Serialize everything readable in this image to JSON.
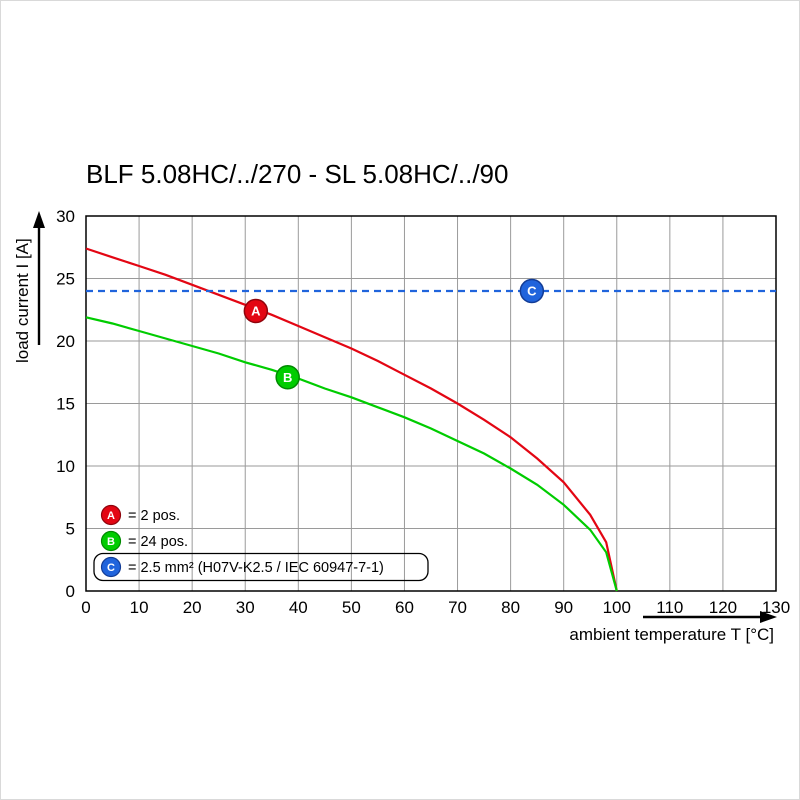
{
  "page": {
    "background": "#ffffff"
  },
  "chart_data": {
    "type": "line",
    "title": "BLF 5.08HC/../270 - SL 5.08HC/../90",
    "xlabel": "ambient temperature T [°C]",
    "ylabel": "load current I [A]",
    "xlim": [
      0,
      130
    ],
    "ylim": [
      0,
      30
    ],
    "xticks": [
      0,
      10,
      20,
      30,
      40,
      50,
      60,
      70,
      80,
      90,
      100,
      110,
      120,
      130
    ],
    "yticks": [
      0,
      5,
      10,
      15,
      20,
      25,
      30
    ],
    "grid": true,
    "legend_position": "inside bottom-left",
    "colors": {
      "grid": "#9a9a9a",
      "frame": "#000000",
      "axis": "#000000"
    },
    "series": [
      {
        "name": "A",
        "legend_label": "= 2 pos.",
        "color": "#e30613",
        "edge_color": "#8f040c",
        "dashed": false,
        "legend_boxed": false,
        "x": [
          0,
          5,
          10,
          15,
          20,
          25,
          30,
          35,
          40,
          45,
          50,
          55,
          60,
          65,
          70,
          75,
          80,
          85,
          90,
          95,
          98,
          100
        ],
        "y": [
          27.4,
          26.7,
          26.0,
          25.3,
          24.5,
          23.7,
          22.9,
          22.1,
          21.2,
          20.3,
          19.4,
          18.4,
          17.3,
          16.2,
          15.0,
          13.7,
          12.3,
          10.6,
          8.7,
          6.1,
          3.9,
          0
        ],
        "marker": {
          "x": 32,
          "y": 22.4
        }
      },
      {
        "name": "B",
        "legend_label": "= 24 pos.",
        "color": "#00cc00",
        "edge_color": "#008a00",
        "dashed": false,
        "legend_boxed": false,
        "x": [
          0,
          5,
          10,
          15,
          20,
          25,
          30,
          35,
          40,
          45,
          50,
          55,
          60,
          65,
          70,
          75,
          80,
          85,
          90,
          95,
          98,
          100
        ],
        "y": [
          21.9,
          21.4,
          20.8,
          20.2,
          19.6,
          19.0,
          18.3,
          17.7,
          17.0,
          16.2,
          15.5,
          14.7,
          13.9,
          13.0,
          12.0,
          11.0,
          9.8,
          8.5,
          6.9,
          4.9,
          3.1,
          0
        ],
        "marker": {
          "x": 38,
          "y": 17.1
        }
      },
      {
        "name": "C",
        "legend_label": "= 2.5 mm² (H07V-K2.5 / IEC 60947-7-1)",
        "color": "#2064dc",
        "edge_color": "#123c96",
        "dashed": true,
        "legend_boxed": true,
        "x": [
          0,
          130
        ],
        "y": [
          24,
          24
        ],
        "marker": {
          "x": 84,
          "y": 24
        }
      }
    ]
  }
}
